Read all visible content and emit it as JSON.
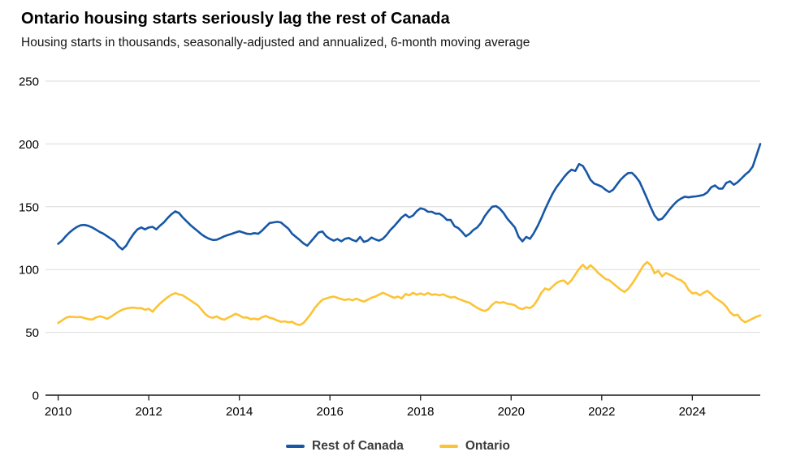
{
  "title": "Ontario housing starts seriously lag the rest of Canada",
  "subtitle": "Housing starts in thousands, seasonally-adjusted and annualized, 6-month moving average",
  "legend": [
    {
      "label": "Rest of Canada",
      "color": "#1757a6"
    },
    {
      "label": "Ontario",
      "color": "#fcc335"
    }
  ],
  "chart_data": {
    "type": "line",
    "title": "Ontario housing starts seriously lag the rest of Canada",
    "subtitle": "Housing starts in thousands, seasonally-adjusted and annualized, 6-month moving average",
    "xlabel": "",
    "ylabel": "",
    "x_unit": "year (monthly points, 6-month moving average)",
    "x_start": 2010.0,
    "x_step": 0.0833333,
    "xlim": [
      2009.72,
      2025.5
    ],
    "ylim": [
      0,
      250
    ],
    "y_axis_ticks": [
      0,
      50,
      100,
      150,
      200,
      250
    ],
    "x_axis_ticks": [
      2010,
      2012,
      2014,
      2016,
      2018,
      2020,
      2022,
      2024
    ],
    "grid": "horizontal",
    "legend_position": "bottom-center",
    "series": [
      {
        "name": "Rest of Canada",
        "color": "#1757a6",
        "values": [
          120.5,
          123,
          126.5,
          129.5,
          132,
          134,
          135.3,
          135.5,
          134.8,
          133.5,
          131.8,
          130,
          128.5,
          126.5,
          124.5,
          122.5,
          118.5,
          116,
          119,
          124,
          128.5,
          132,
          133.5,
          132,
          133.5,
          134,
          132,
          135,
          137.5,
          141,
          144,
          146.3,
          145,
          141.5,
          138.5,
          135.5,
          133,
          130.5,
          128,
          126,
          124.5,
          123.5,
          123.8,
          125,
          126.5,
          127.5,
          128.5,
          129.5,
          130.5,
          129.5,
          128.5,
          128.3,
          129,
          128.5,
          131,
          134,
          137,
          137.5,
          138,
          137.5,
          135,
          132.5,
          128.5,
          126,
          123.5,
          120.8,
          119,
          122.5,
          126,
          129.5,
          130.3,
          126.5,
          124.5,
          123,
          124.3,
          122.5,
          124.5,
          125.1,
          123.5,
          122.5,
          126,
          122,
          123,
          125.5,
          124,
          123,
          124.5,
          127.5,
          131.5,
          134.5,
          138,
          141.5,
          143.8,
          141.5,
          143,
          146.5,
          148.8,
          148,
          146,
          146,
          144.5,
          144.5,
          142.5,
          139.5,
          139.5,
          134.5,
          133,
          130,
          126.5,
          128.5,
          131.5,
          133.5,
          137,
          142.5,
          146.5,
          150,
          150.5,
          148.5,
          145,
          140.5,
          137,
          133.5,
          126,
          122.5,
          126,
          124.5,
          129,
          134.5,
          141,
          148,
          154.5,
          160.5,
          165.5,
          169.5,
          173.5,
          177,
          179.5,
          178.5,
          184,
          182.5,
          177.5,
          171.5,
          168.5,
          167.3,
          166,
          163.5,
          161.7,
          163.5,
          167.5,
          171.5,
          174.5,
          176.8,
          177,
          174,
          170,
          163.5,
          156.5,
          149.5,
          143,
          139.5,
          140.5,
          144,
          148,
          151.5,
          154.5,
          156.5,
          158,
          157.5,
          158,
          158.3,
          158.8,
          159.5,
          161.5,
          165.5,
          167,
          164.5,
          164.5,
          169,
          170.3,
          167.5,
          169.5,
          172.5,
          175.5,
          178,
          182,
          191,
          200
        ]
      },
      {
        "name": "Ontario",
        "color": "#fcc335",
        "values": [
          57.5,
          59.5,
          61.5,
          62.5,
          62.3,
          62,
          62.3,
          61.3,
          60.5,
          60.2,
          61.8,
          62.8,
          62,
          60.8,
          62.5,
          64.5,
          66.5,
          68,
          69,
          69.5,
          69.7,
          69.2,
          69.3,
          68,
          68.8,
          66.5,
          69.9,
          73,
          75.5,
          78,
          80,
          81.2,
          80.3,
          79.5,
          77.5,
          75.5,
          73.5,
          71.5,
          68,
          64.5,
          62.3,
          61.6,
          62.7,
          61,
          60.1,
          61.6,
          63.1,
          64.8,
          63.5,
          61.8,
          61.9,
          60.5,
          60.9,
          60.3,
          62,
          63.1,
          61.6,
          60.9,
          59.5,
          58.4,
          58.8,
          58,
          58.4,
          56.5,
          55.9,
          57.5,
          61,
          65,
          69.5,
          73,
          76,
          77,
          78,
          78.5,
          77.5,
          76.5,
          75.8,
          76.5,
          75.5,
          76.8,
          75.5,
          74.5,
          76,
          77.5,
          78.5,
          80,
          81.5,
          80.3,
          78.8,
          77.5,
          78.5,
          77,
          80.5,
          79.5,
          81.5,
          80,
          81,
          79.9,
          81.3,
          79.9,
          80.3,
          79.5,
          80.3,
          78.8,
          77.7,
          78.2,
          76.7,
          75.6,
          74.5,
          73.5,
          71.5,
          69.5,
          68,
          67,
          68.5,
          72,
          74.3,
          73.5,
          74,
          72.8,
          72.4,
          71.5,
          69.3,
          68.5,
          70,
          69.3,
          71.5,
          76,
          81.5,
          85,
          83.8,
          86.5,
          89.3,
          90.8,
          91.3,
          88.5,
          91.5,
          96,
          100.5,
          103.8,
          100.5,
          103.4,
          101,
          97.5,
          95,
          92.5,
          91.5,
          89,
          86.5,
          84,
          82.2,
          84.5,
          88.5,
          93,
          98,
          103,
          106,
          103.5,
          97,
          99,
          94.5,
          97.3,
          96,
          94.5,
          92.5,
          91.5,
          89,
          84,
          81,
          81.5,
          79.5,
          81.5,
          83,
          80.5,
          77.5,
          75.5,
          73.5,
          70.5,
          66,
          63.5,
          64,
          60,
          58,
          59.5,
          61,
          62.5,
          63.5
        ]
      }
    ]
  },
  "colors": {
    "grid": "#dbdbdb",
    "axis": "#1a1a1a",
    "title": "#000000",
    "subtitle": "#141414",
    "legend_text": "#3c3c3c",
    "background": "#ffffff"
  }
}
